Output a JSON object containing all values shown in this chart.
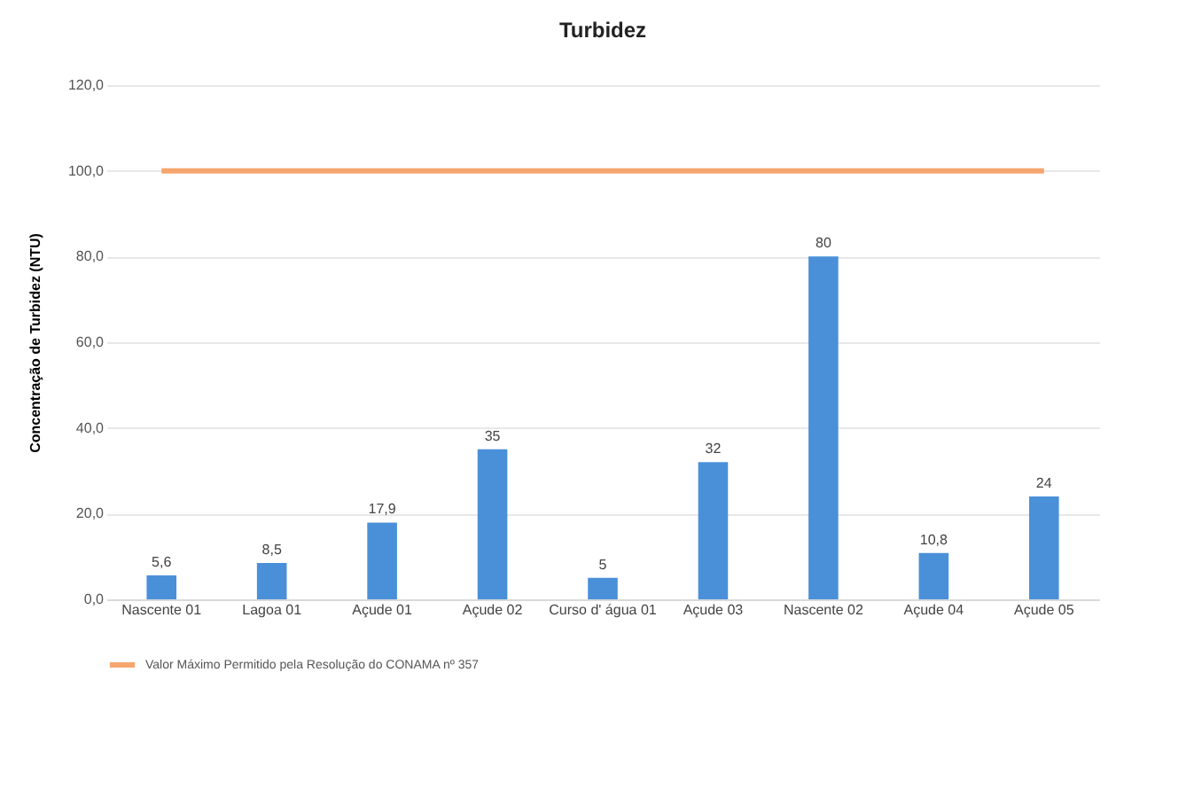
{
  "chart_data": {
    "type": "bar",
    "title": "Turbidez",
    "ylabel": "Concentração de Turbidez (NTU)",
    "categories": [
      "Nascente 01",
      "Lagoa 01",
      "Açude 01",
      "Açude 02",
      "Curso d' água 01",
      "Açude 03",
      "Nascente 02",
      "Açude 04",
      "Açude 05"
    ],
    "series": [
      {
        "color": "#4a90d9",
        "values": [
          5.6,
          8.5,
          17.9,
          35,
          5,
          32,
          80,
          10.8,
          24
        ],
        "value_labels": [
          "5,6",
          "8,5",
          "17,9",
          "35",
          "5",
          "32",
          "80",
          "10,8",
          "24"
        ]
      },
      {
        "type": "line",
        "name": "Valor Máximo Permitido pela Resolução do CONAMA nº 357",
        "color": "#f5a66f",
        "values": [
          100,
          100,
          100,
          100,
          100,
          100,
          100,
          100,
          100
        ]
      }
    ],
    "ylim": [
      0,
      120
    ],
    "yticks": [
      {
        "value": 0,
        "label": "0,0"
      },
      {
        "value": 20,
        "label": "20,0"
      },
      {
        "value": 40,
        "label": "40,0"
      },
      {
        "value": 60,
        "label": "60,0"
      },
      {
        "value": 80,
        "label": "80,0"
      },
      {
        "value": 100,
        "label": "100,0"
      },
      {
        "value": 120,
        "label": "120,0"
      }
    ],
    "grid": "y",
    "legend": "bottom"
  }
}
